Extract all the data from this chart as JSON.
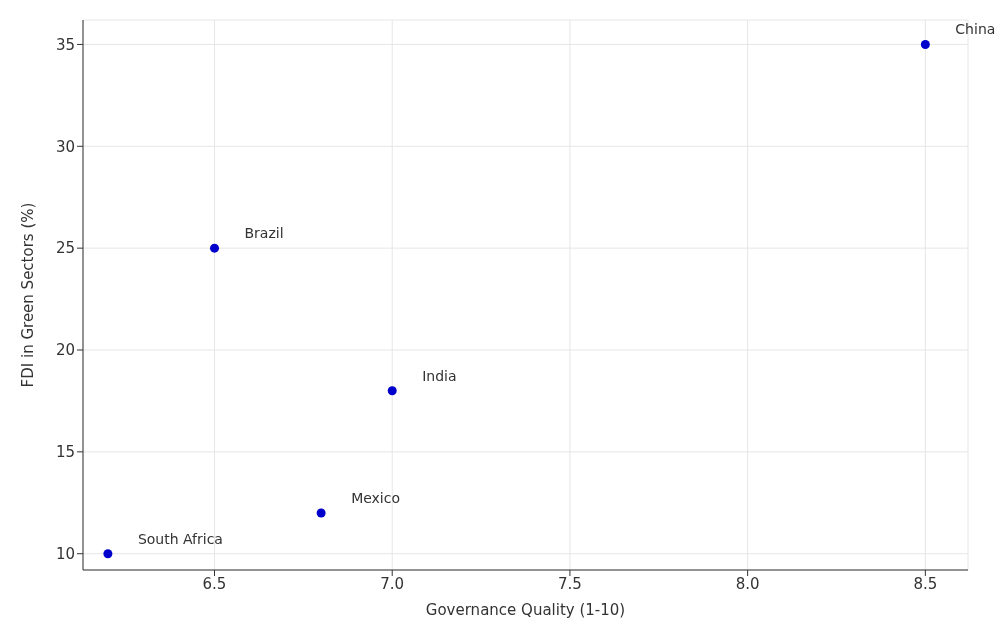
{
  "chart_data": {
    "type": "scatter",
    "xlabel": "Governance Quality (1-10)",
    "ylabel": "FDI in Green Sectors (%)",
    "x": [
      6.2,
      6.5,
      6.8,
      7.0,
      8.5
    ],
    "values": [
      10,
      25,
      12,
      18,
      35
    ],
    "color": "#0000cc",
    "marker": "circle",
    "xlim": [
      6.13,
      8.62
    ],
    "xticks": [
      6.5,
      {
        "value": 7,
        "label": "7.0"
      },
      7.5,
      {
        "value": 8,
        "label": "8.0"
      },
      8.5
    ],
    "ylim": [
      9.2,
      36.2
    ],
    "yticks": [
      10,
      15,
      20,
      25,
      30,
      35
    ],
    "grid": true,
    "annotations": [
      {
        "text": "South Africa",
        "x": 6.2,
        "y": 10
      },
      {
        "text": "Brazil",
        "x": 6.5,
        "y": 25
      },
      {
        "text": "Mexico",
        "x": 6.8,
        "y": 12
      },
      {
        "text": "India",
        "x": 7.0,
        "y": 18
      },
      {
        "text": "China",
        "x": 8.5,
        "y": 35
      }
    ]
  }
}
